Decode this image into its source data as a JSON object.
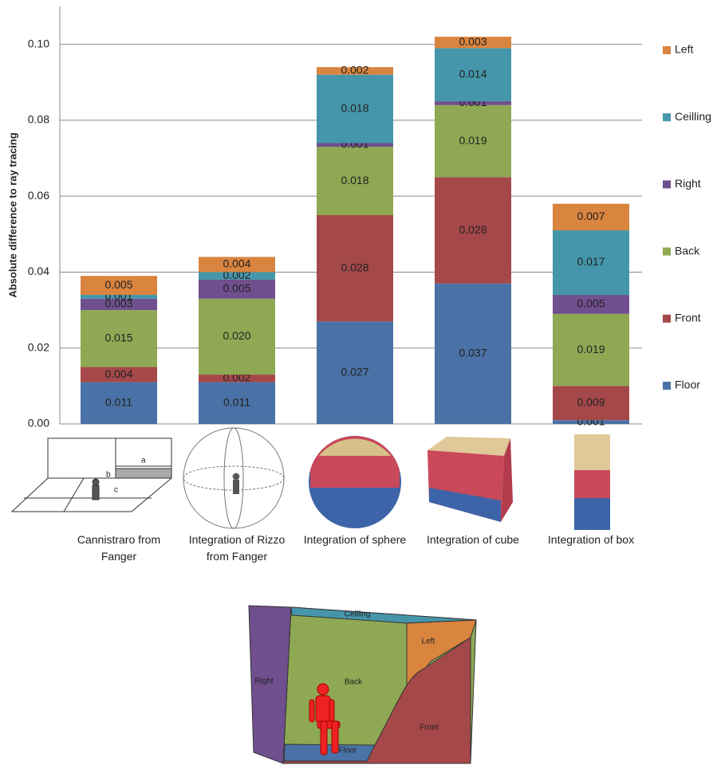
{
  "chart_data": {
    "type": "stacked-bar",
    "y_label": "Absolute difference to ray tracing",
    "categories": [
      "Cannistraro from Fanger",
      "Integration of Rizzo from Fanger",
      "Integration of sphere",
      "Integration of cube",
      "Integration of box"
    ],
    "series": [
      {
        "name": "Floor",
        "color": "#4a72a6",
        "values": [
          0.011,
          0.011,
          0.027,
          0.037,
          0.001
        ],
        "value_labels": [
          "0.011",
          "0.011",
          "0.027",
          "0.037",
          "0.001"
        ]
      },
      {
        "name": "Front",
        "color": "#a5484a",
        "values": [
          0.004,
          0.002,
          0.028,
          0.028,
          0.009
        ],
        "value_labels": [
          "0.004",
          "0.002",
          "0.028",
          "0.028",
          "0.009"
        ]
      },
      {
        "name": "Back",
        "color": "#8fa854",
        "values": [
          0.015,
          0.02,
          0.018,
          0.019,
          0.019
        ],
        "value_labels": [
          "0.015",
          "0.020",
          "0.018",
          "0.019",
          "0.019"
        ]
      },
      {
        "name": "Right",
        "color": "#6f4f8e",
        "values": [
          0.003,
          0.005,
          0.001,
          0.001,
          0.005
        ],
        "value_labels": [
          "0.003",
          "0.005",
          "0.001",
          "0.001",
          "0.005"
        ]
      },
      {
        "name": "Ceilling",
        "color": "#4596ab",
        "values": [
          0.001,
          0.002,
          0.018,
          0.014,
          0.017
        ],
        "value_labels": [
          "0.001",
          "0.002",
          "0.018",
          "0.014",
          "0.017"
        ]
      },
      {
        "name": "Left",
        "color": "#d9843f",
        "values": [
          0.005,
          0.004,
          0.002,
          0.003,
          0.007
        ],
        "value_labels": [
          "0.005",
          "0.004",
          "0.002",
          "0.003",
          "0.007"
        ]
      }
    ],
    "ylim": [
      0,
      0.11
    ],
    "yticks": [
      {
        "value": 0,
        "label": "0.00"
      },
      {
        "value": 0.02,
        "label": "0.02"
      },
      {
        "value": 0.04,
        "label": "0.04"
      },
      {
        "value": 0.06,
        "label": "0.06"
      },
      {
        "value": 0.08,
        "label": "0.08"
      },
      {
        "value": 0.1,
        "label": "0.10"
      }
    ],
    "grid": true,
    "legend": "right"
  },
  "room_diagram": {
    "labels": [
      "Ceilling",
      "Left",
      "Right",
      "Back",
      "Front",
      "Floor"
    ],
    "sketch_labels": [
      "a",
      "b",
      "c"
    ]
  }
}
